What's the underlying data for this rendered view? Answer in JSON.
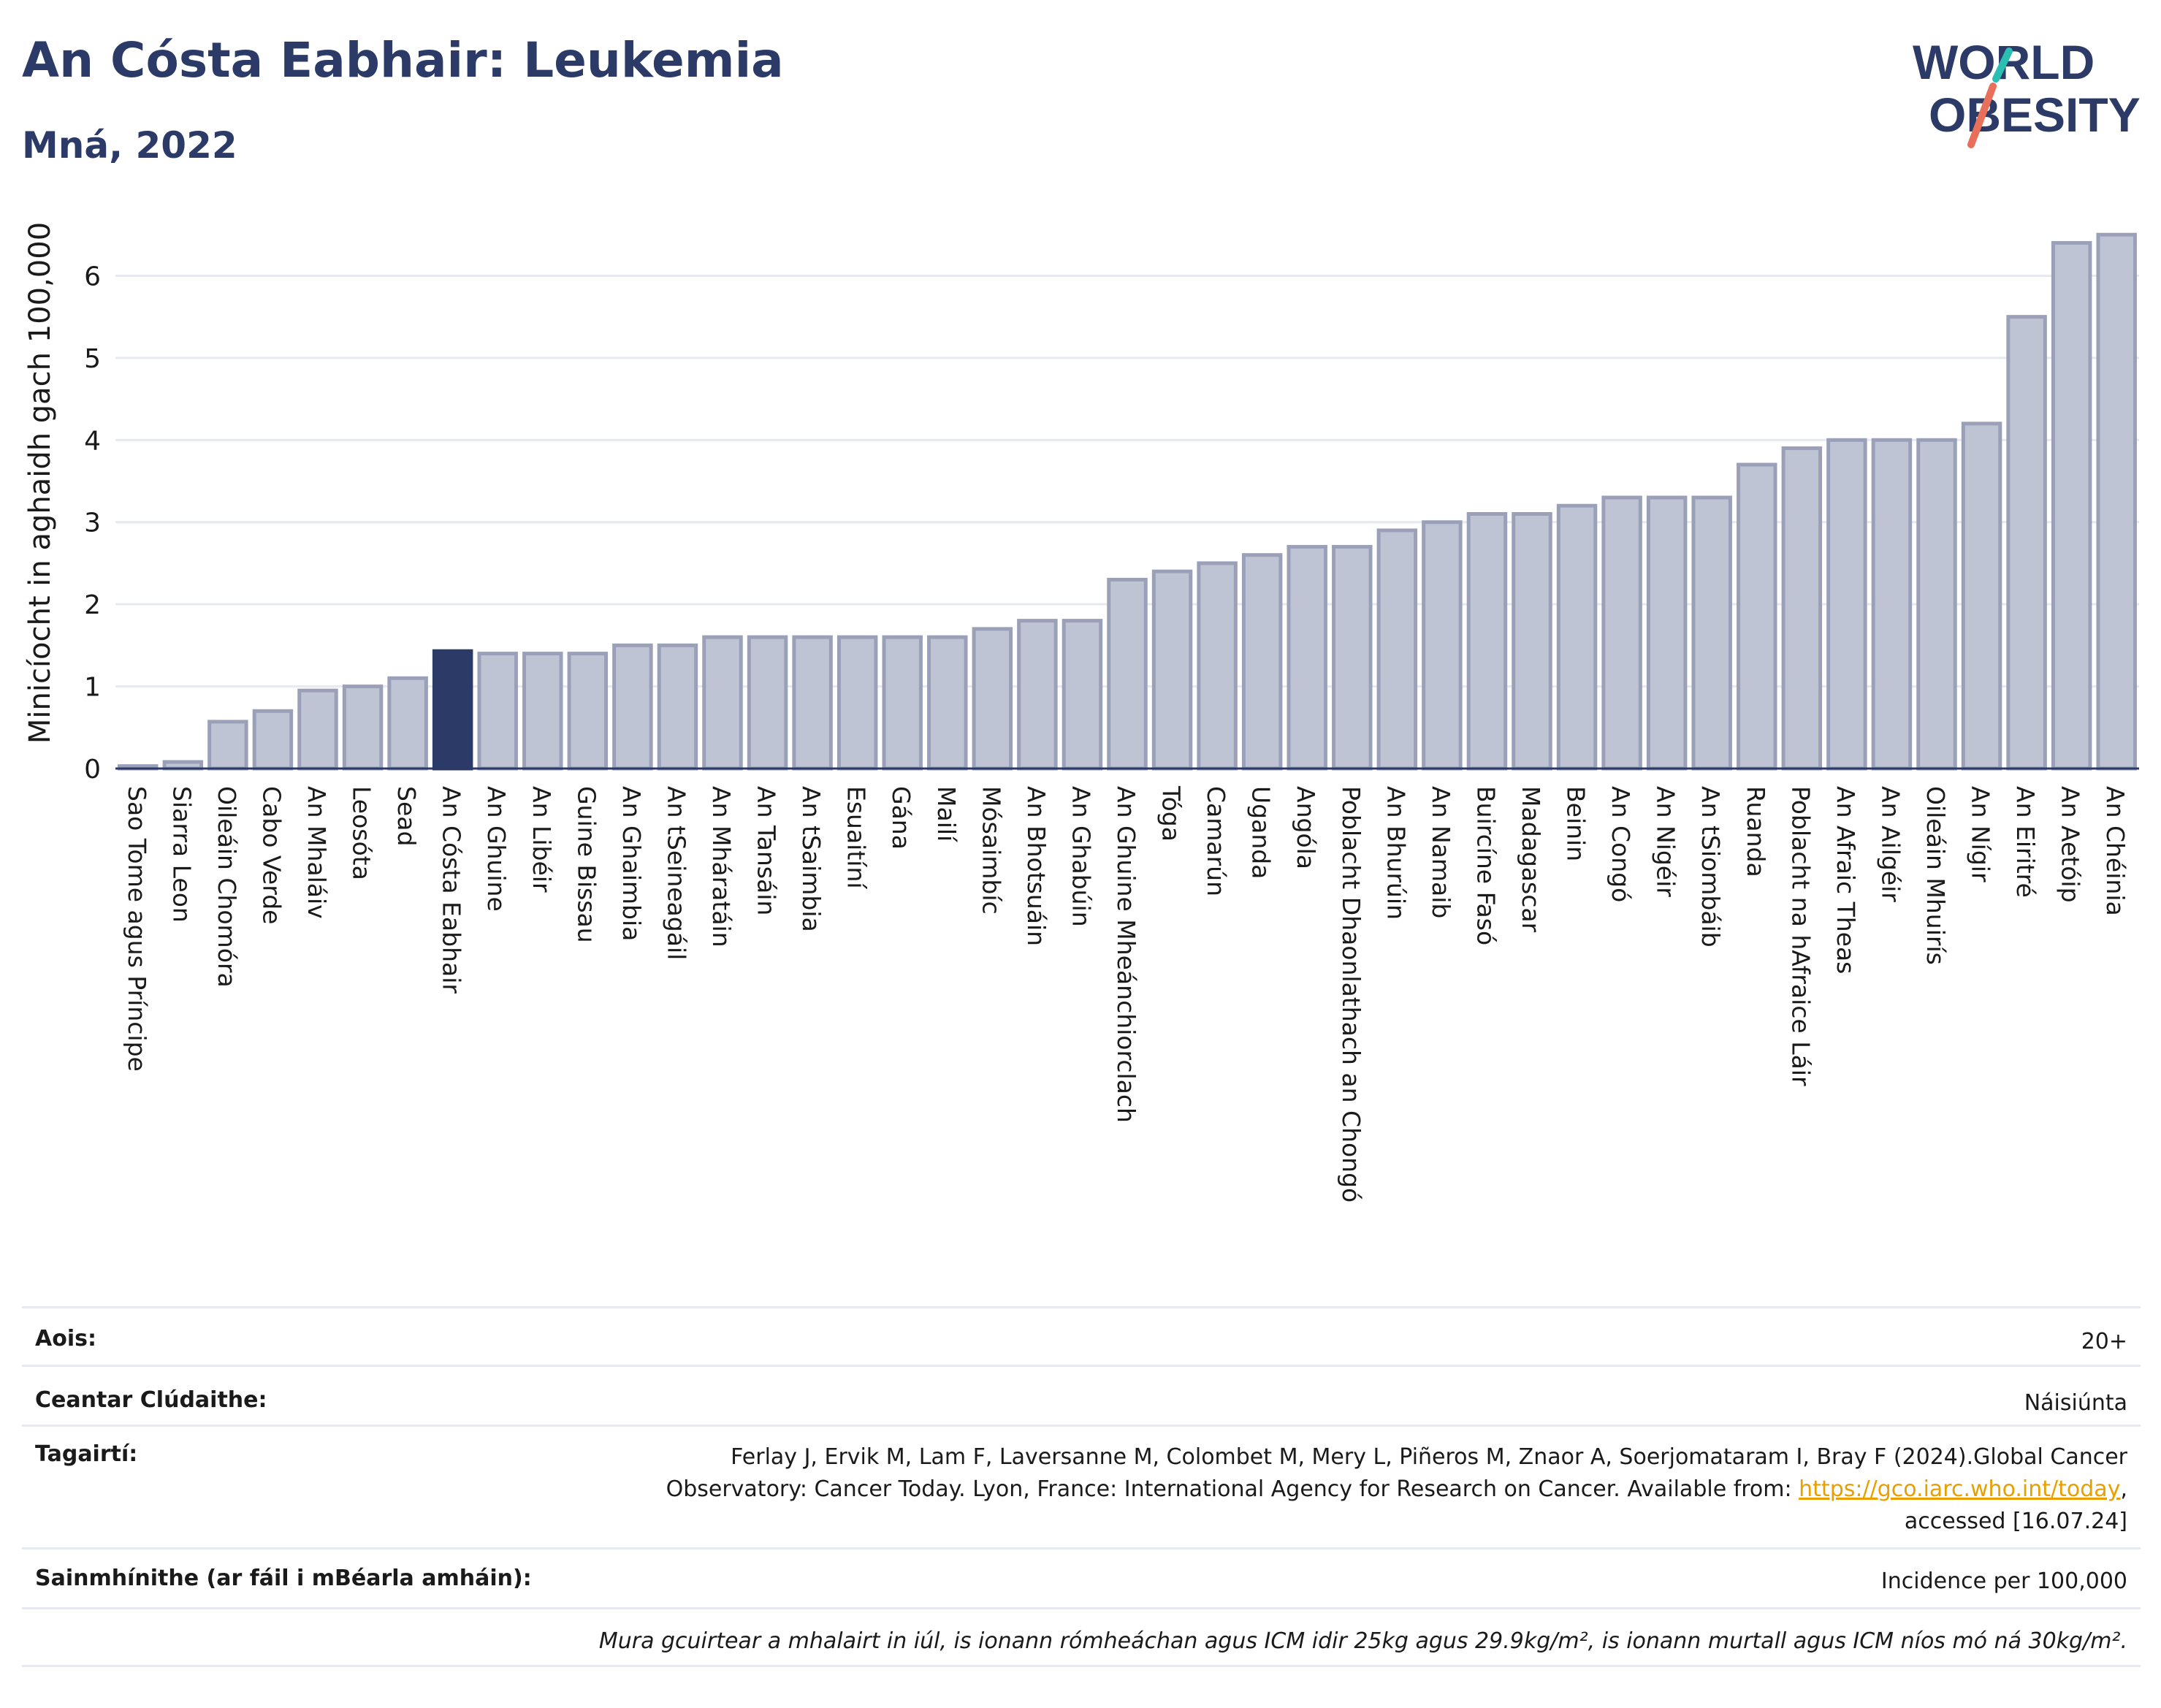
{
  "title": "An Cósta Eabhair: Leukemia",
  "subtitle": "Mná, 2022",
  "logo": {
    "line1": "WORLD",
    "line2": "OBESITY"
  },
  "colors": {
    "bar": "#bfc4d4",
    "bar_border": "#9aa0b8",
    "highlight": "#2b3a67",
    "title": "#2b3a67",
    "link": "#e8a000"
  },
  "chart_data": {
    "type": "bar",
    "ylabel": "Minicíocht in aghaidh gach 100,000",
    "ylim": [
      0,
      6.6
    ],
    "yticks": [
      0,
      1,
      2,
      3,
      4,
      5,
      6
    ],
    "grid": true,
    "highlight": "An Cósta Eabhair",
    "categories": [
      "Sao Tome agus Príncipe",
      "Siarra Leon",
      "Oileáin Chomóra",
      "Cabo Verde",
      "An Mhaláiv",
      "Leosóta",
      "Sead",
      "An Cósta Eabhair",
      "An Ghuine",
      "An Libéir",
      "Guine Bissau",
      "An Ghaimbia",
      "An tSeineagáil",
      "An Mháratáin",
      "An Tansáin",
      "An tSaimbia",
      "Esuaitíní",
      "Gána",
      "Mailí",
      "Mósaimbíc",
      "An Bhotsuáin",
      "An Ghabúin",
      "An Ghuine Mheánchiorclach",
      "Tóga",
      "Camarún",
      "Uganda",
      "Angóla",
      "Poblacht Dhaonlathach an Chongó",
      "An Bhurúin",
      "An Namaib",
      "Buircíne Fasó",
      "Madagascar",
      "Beinin",
      "An Congó",
      "An Nigéir",
      "An tSiombáib",
      "Ruanda",
      "Poblacht na hAfraice Láir",
      "An Afraic Theas",
      "An Ailgéir",
      "Oileáin Mhuirís",
      "An Nígir",
      "An Eiritré",
      "An Aetóip",
      "An Chéinia"
    ],
    "values": [
      0.03,
      0.08,
      0.57,
      0.7,
      0.95,
      1.0,
      1.1,
      1.43,
      1.4,
      1.4,
      1.4,
      1.5,
      1.5,
      1.6,
      1.6,
      1.6,
      1.6,
      1.6,
      1.6,
      1.7,
      1.8,
      1.8,
      2.3,
      2.4,
      2.5,
      2.6,
      2.7,
      2.7,
      2.9,
      3.0,
      3.1,
      3.1,
      3.2,
      3.3,
      3.3,
      3.3,
      3.7,
      3.9,
      4.0,
      4.0,
      4.0,
      4.2,
      5.5,
      6.4,
      6.5
    ]
  },
  "info": {
    "age_label": "Aois:",
    "age_value": "20+",
    "area_label": "Ceantar Clúdaithe:",
    "area_value": "Náisiúnta",
    "ref_label": "Tagairtí:",
    "ref_line1": "Ferlay J, Ervik M, Lam F, Laversanne M, Colombet M, Mery L, Piñeros M, Znaor A, Soerjomataram I, Bray F (2024).Global Cancer",
    "ref_line2": "Observatory: Cancer Today. Lyon, France: International Agency for Research on Cancer. Available from:",
    "ref_link": "https://gco.iarc.who.int/today",
    "ref_line3": "accessed [16.07.24]",
    "def_label": "Sainmhínithe (ar fáil i mBéarla amháin):",
    "def_value": "Incidence per 100,000",
    "note": "Mura gcuirtear a mhalairt in iúl, is ionann rómheáchan agus ICM idir 25kg agus 29.9kg/m², is ionann murtall agus ICM níos mó ná 30kg/m²."
  }
}
